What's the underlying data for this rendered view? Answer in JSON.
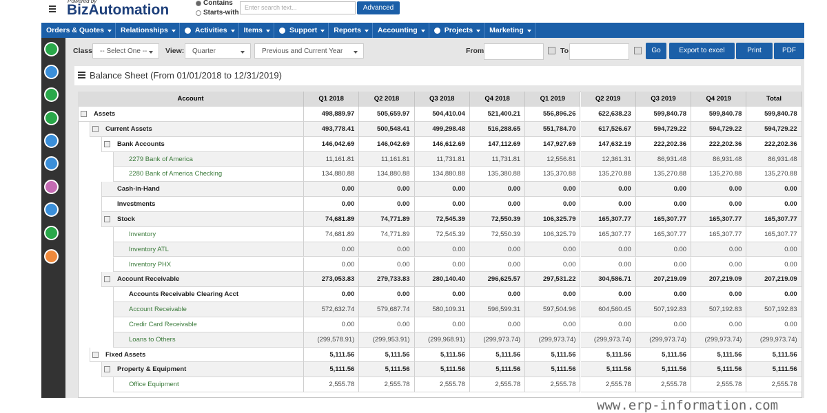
{
  "header": {
    "powered_by": "Powered by",
    "logo": "BizAutomation",
    "search_modes": [
      "Contains",
      "Starts-with"
    ],
    "search_placeholder": "Enter search text...",
    "advanced_button": "Advanced"
  },
  "nav": [
    {
      "label": "Orders & Quotes"
    },
    {
      "label": "Relationships"
    },
    {
      "label": "Activities",
      "icon": true
    },
    {
      "label": "Items"
    },
    {
      "label": "Support",
      "icon": true
    },
    {
      "label": "Reports"
    },
    {
      "label": "Accounting"
    },
    {
      "label": "Projects",
      "icon": true
    },
    {
      "label": "Marketing"
    }
  ],
  "filters": {
    "class_label": "Class:",
    "class_value": "-- Select One --",
    "view_label": "View:",
    "view_value": "Quarter",
    "period_value": "Previous and Current Year",
    "from_label": "From",
    "to_label": "To",
    "buttons": [
      "Go",
      "Export to excel",
      "Print",
      "PDF"
    ]
  },
  "report": {
    "title": "Balance Sheet (From 01/01/2018 to 12/31/2019)",
    "columns": [
      "Account",
      "Q1 2018",
      "Q2 2018",
      "Q3 2018",
      "Q4 2018",
      "Q1 2019",
      "Q2 2019",
      "Q3 2019",
      "Q4 2019",
      "Total"
    ],
    "rows": [
      {
        "account": "Assets",
        "level": 0,
        "style": "bold",
        "values": [
          "498,889.97",
          "505,659.97",
          "504,410.04",
          "521,400.21",
          "556,896.26",
          "622,638.23",
          "599,840.78",
          "599,840.78",
          "599,840.78"
        ]
      },
      {
        "account": "Current Assets",
        "level": 1,
        "style": "bold",
        "values": [
          "493,778.41",
          "500,548.41",
          "499,298.48",
          "516,288.65",
          "551,784.70",
          "617,526.67",
          "594,729.22",
          "594,729.22",
          "594,729.22"
        ]
      },
      {
        "account": "Bank Accounts",
        "level": 2,
        "style": "bold",
        "values": [
          "146,042.69",
          "146,042.69",
          "146,612.69",
          "147,112.69",
          "147,927.69",
          "147,632.19",
          "222,202.36",
          "222,202.36",
          "222,202.36"
        ]
      },
      {
        "account": "2279 Bank of America",
        "level": 3,
        "style": "link",
        "values": [
          "11,161.81",
          "11,161.81",
          "11,731.81",
          "11,731.81",
          "12,556.81",
          "12,361.31",
          "86,931.48",
          "86,931.48",
          "86,931.48"
        ]
      },
      {
        "account": "2280 Bank of America Checking",
        "level": 3,
        "style": "link",
        "values": [
          "134,880.88",
          "134,880.88",
          "134,880.88",
          "135,380.88",
          "135,370.88",
          "135,270.88",
          "135,270.88",
          "135,270.88",
          "135,270.88"
        ]
      },
      {
        "account": "Cash-in-Hand",
        "level": 2,
        "style": "bold",
        "values": [
          "0.00",
          "0.00",
          "0.00",
          "0.00",
          "0.00",
          "0.00",
          "0.00",
          "0.00",
          "0.00"
        ]
      },
      {
        "account": "Investments",
        "level": 2,
        "style": "bold",
        "values": [
          "0.00",
          "0.00",
          "0.00",
          "0.00",
          "0.00",
          "0.00",
          "0.00",
          "0.00",
          "0.00"
        ]
      },
      {
        "account": "Stock",
        "level": 2,
        "style": "bold",
        "values": [
          "74,681.89",
          "74,771.89",
          "72,545.39",
          "72,550.39",
          "106,325.79",
          "165,307.77",
          "165,307.77",
          "165,307.77",
          "165,307.77"
        ]
      },
      {
        "account": "Inventory",
        "level": 3,
        "style": "link",
        "values": [
          "74,681.89",
          "74,771.89",
          "72,545.39",
          "72,550.39",
          "106,325.79",
          "165,307.77",
          "165,307.77",
          "165,307.77",
          "165,307.77"
        ]
      },
      {
        "account": "Inventory ATL",
        "level": 3,
        "style": "link",
        "values": [
          "0.00",
          "0.00",
          "0.00",
          "0.00",
          "0.00",
          "0.00",
          "0.00",
          "0.00",
          "0.00"
        ]
      },
      {
        "account": "Inventory PHX",
        "level": 3,
        "style": "link",
        "values": [
          "0.00",
          "0.00",
          "0.00",
          "0.00",
          "0.00",
          "0.00",
          "0.00",
          "0.00",
          "0.00"
        ]
      },
      {
        "account": "Account Receivable",
        "level": 2,
        "style": "bold",
        "values": [
          "273,053.83",
          "279,733.83",
          "280,140.40",
          "296,625.57",
          "297,531.22",
          "304,586.71",
          "207,219.09",
          "207,219.09",
          "207,219.09"
        ]
      },
      {
        "account": "Accounts Receivable Clearing Acct",
        "level": 3,
        "style": "bold",
        "values": [
          "0.00",
          "0.00",
          "0.00",
          "0.00",
          "0.00",
          "0.00",
          "0.00",
          "0.00",
          "0.00"
        ]
      },
      {
        "account": "Account Receivable",
        "level": 3,
        "style": "link",
        "values": [
          "572,632.74",
          "579,687.74",
          "580,109.31",
          "596,599.31",
          "597,504.96",
          "604,560.45",
          "507,192.83",
          "507,192.83",
          "507,192.83"
        ]
      },
      {
        "account": "Credir Card Receivable",
        "level": 3,
        "style": "link",
        "values": [
          "0.00",
          "0.00",
          "0.00",
          "0.00",
          "0.00",
          "0.00",
          "0.00",
          "0.00",
          "0.00"
        ]
      },
      {
        "account": "Loans to Others",
        "level": 3,
        "style": "link",
        "values": [
          "(299,578.91)",
          "(299,953.91)",
          "(299,968.91)",
          "(299,973.74)",
          "(299,973.74)",
          "(299,973.74)",
          "(299,973.74)",
          "(299,973.74)",
          "(299,973.74)"
        ]
      },
      {
        "account": "Fixed Assets",
        "level": 1,
        "style": "bold",
        "values": [
          "5,111.56",
          "5,111.56",
          "5,111.56",
          "5,111.56",
          "5,111.56",
          "5,111.56",
          "5,111.56",
          "5,111.56",
          "5,111.56"
        ]
      },
      {
        "account": "Property & Equipment",
        "level": 2,
        "style": "bold",
        "values": [
          "5,111.56",
          "5,111.56",
          "5,111.56",
          "5,111.56",
          "5,111.56",
          "5,111.56",
          "5,111.56",
          "5,111.56",
          "5,111.56"
        ]
      },
      {
        "account": "Office Equipment",
        "level": 3,
        "style": "link",
        "values": [
          "2,555.78",
          "2,555.78",
          "2,555.78",
          "2,555.78",
          "2,555.78",
          "2,555.78",
          "2,555.78",
          "2,555.78",
          "2,555.78"
        ]
      }
    ]
  },
  "watermark": "www.erp-information.com"
}
